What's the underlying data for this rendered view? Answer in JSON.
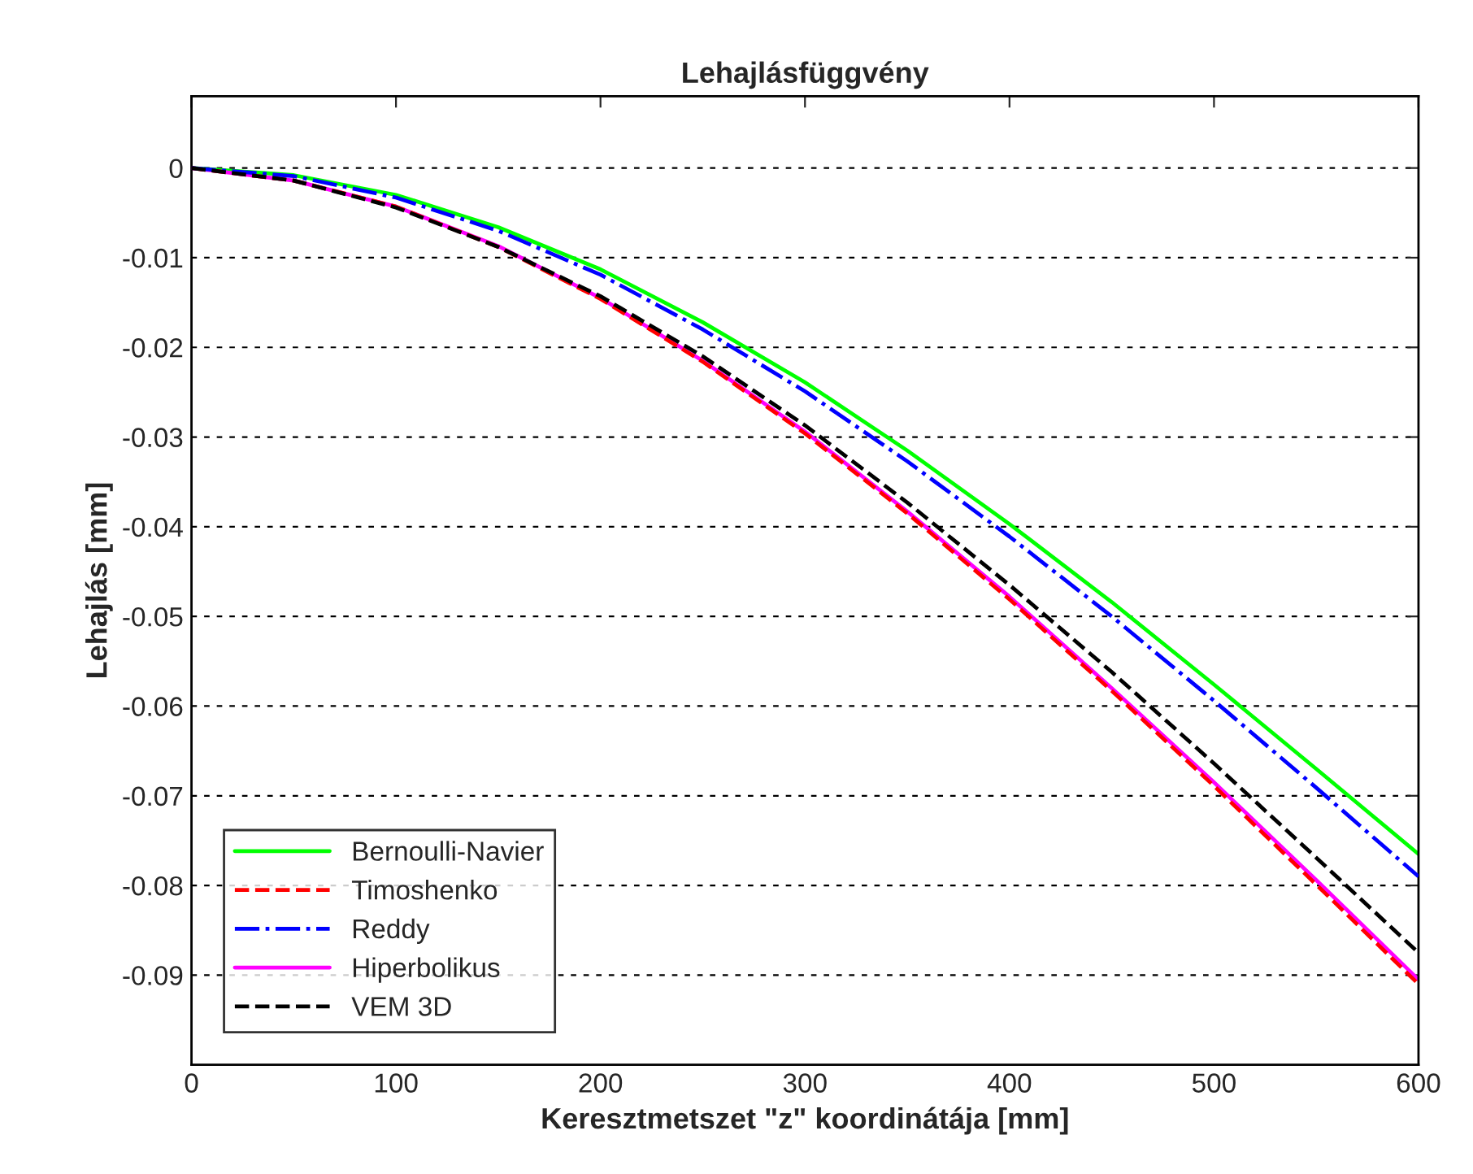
{
  "chart_data": {
    "type": "line",
    "title": "Lehajlásfüggvény",
    "xlabel": "Keresztmetszet \"z\" koordinátája [mm]",
    "ylabel": "Lehajlás [mm]",
    "x": [
      0,
      50,
      100,
      150,
      200,
      250,
      300,
      350,
      400,
      450,
      500,
      550,
      600
    ],
    "xlim": [
      0,
      600
    ],
    "xticks": [
      0,
      100,
      200,
      300,
      400,
      500,
      600
    ],
    "ylim": [
      -0.1,
      0.008
    ],
    "yticks": [
      -0.09,
      -0.08,
      -0.07,
      -0.06,
      -0.05,
      -0.04,
      -0.03,
      -0.02,
      -0.01,
      0
    ],
    "grid": "y",
    "legend": "bottom left",
    "series": [
      {
        "name": "Bernoulli-Navier",
        "color": "#00ff00",
        "line_style": "solid",
        "values": [
          0,
          -0.0008,
          -0.003,
          -0.0066,
          -0.0113,
          -0.0172,
          -0.0239,
          -0.0315,
          -0.0397,
          -0.0484,
          -0.0576,
          -0.067,
          -0.0765
        ]
      },
      {
        "name": "Timoshenko",
        "color": "#ff0000",
        "line_style": "dashed",
        "values": [
          0,
          -0.0014,
          -0.0043,
          -0.0088,
          -0.0146,
          -0.0216,
          -0.0296,
          -0.0385,
          -0.0481,
          -0.0583,
          -0.0689,
          -0.0799,
          -0.091
        ]
      },
      {
        "name": "Reddy",
        "color": "#0000ff",
        "line_style": "dashdot",
        "values": [
          0,
          -0.0009,
          -0.0033,
          -0.007,
          -0.0119,
          -0.018,
          -0.0249,
          -0.0327,
          -0.0411,
          -0.05,
          -0.0594,
          -0.0691,
          -0.079
        ]
      },
      {
        "name": "Hiperbolikus",
        "color": "#ff00ff",
        "line_style": "solid",
        "values": [
          0,
          -0.0014,
          -0.0043,
          -0.0087,
          -0.0145,
          -0.0215,
          -0.0294,
          -0.0383,
          -0.0478,
          -0.058,
          -0.0685,
          -0.0794,
          -0.0905
        ]
      },
      {
        "name": "VEM 3D",
        "color": "#000000",
        "line_style": "dashed",
        "values": [
          0,
          -0.0014,
          -0.0044,
          -0.0088,
          -0.0143,
          -0.021,
          -0.0287,
          -0.0373,
          -0.0465,
          -0.0562,
          -0.0664,
          -0.0769,
          -0.0875
        ]
      }
    ]
  }
}
